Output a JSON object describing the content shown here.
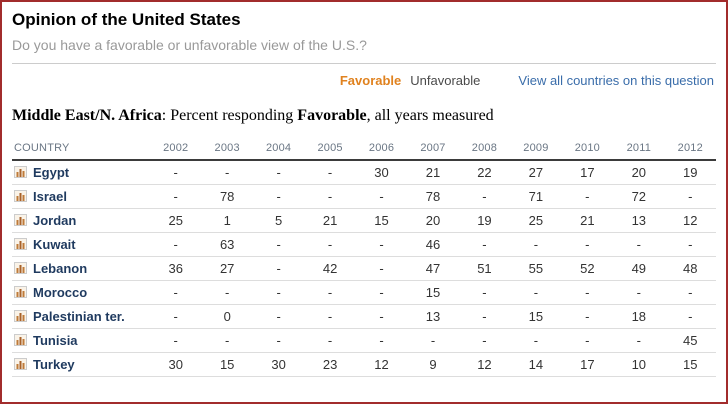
{
  "header": {
    "title": "Opinion of the United States",
    "subtitle": "Do you have a favorable or unfavorable view of the U.S.?"
  },
  "controls": {
    "favorable_label": "Favorable",
    "unfavorable_label": "Unfavorable",
    "view_all_link": "View all countries on this question"
  },
  "section_heading": {
    "region": "Middle East/N. Africa",
    "middle": ": Percent responding ",
    "highlight": "Favorable",
    "suffix": ", all years measured"
  },
  "icons": {
    "row_icon": "bar-chart"
  },
  "colors": {
    "accent_orange": "#e0821f",
    "link_blue": "#3a6daa",
    "country_blue": "#1f3a5f",
    "border_red": "#a22c2c"
  },
  "chart_data": {
    "type": "table",
    "title": "Opinion of the United States",
    "question": "Do you have a favorable or unfavorable view of the U.S.?",
    "region": "Middle East/N. Africa",
    "measure": "Percent responding Favorable, all years measured",
    "columns": [
      "COUNTRY",
      "2002",
      "2003",
      "2004",
      "2005",
      "2006",
      "2007",
      "2008",
      "2009",
      "2010",
      "2011",
      "2012"
    ],
    "rows": [
      {
        "country": "Egypt",
        "values": [
          "-",
          "-",
          "-",
          "-",
          "30",
          "21",
          "22",
          "27",
          "17",
          "20",
          "19"
        ]
      },
      {
        "country": "Israel",
        "values": [
          "-",
          "78",
          "-",
          "-",
          "-",
          "78",
          "-",
          "71",
          "-",
          "72",
          "-"
        ]
      },
      {
        "country": "Jordan",
        "values": [
          "25",
          "1",
          "5",
          "21",
          "15",
          "20",
          "19",
          "25",
          "21",
          "13",
          "12"
        ]
      },
      {
        "country": "Kuwait",
        "values": [
          "-",
          "63",
          "-",
          "-",
          "-",
          "46",
          "-",
          "-",
          "-",
          "-",
          "-"
        ]
      },
      {
        "country": "Lebanon",
        "values": [
          "36",
          "27",
          "-",
          "42",
          "-",
          "47",
          "51",
          "55",
          "52",
          "49",
          "48"
        ]
      },
      {
        "country": "Morocco",
        "values": [
          "-",
          "-",
          "-",
          "-",
          "-",
          "15",
          "-",
          "-",
          "-",
          "-",
          "-"
        ]
      },
      {
        "country": "Palestinian ter.",
        "values": [
          "-",
          "0",
          "-",
          "-",
          "-",
          "13",
          "-",
          "15",
          "-",
          "18",
          "-"
        ]
      },
      {
        "country": "Tunisia",
        "values": [
          "-",
          "-",
          "-",
          "-",
          "-",
          "-",
          "-",
          "-",
          "-",
          "-",
          "45"
        ]
      },
      {
        "country": "Turkey",
        "values": [
          "30",
          "15",
          "30",
          "23",
          "12",
          "9",
          "12",
          "14",
          "17",
          "10",
          "15"
        ]
      }
    ]
  }
}
